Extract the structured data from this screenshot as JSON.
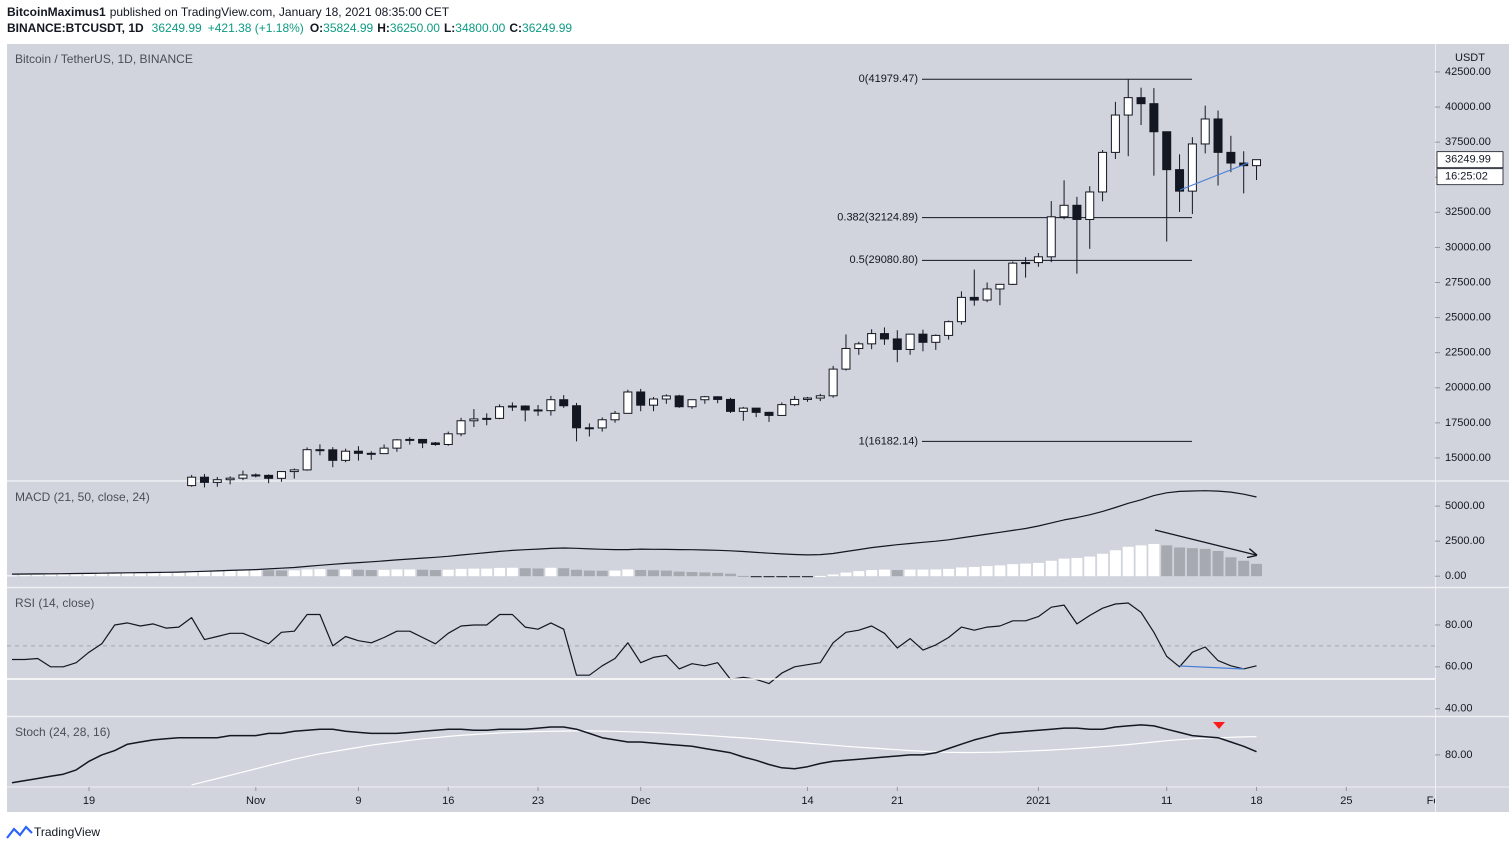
{
  "header": {
    "author": "BitcoinMaximus1",
    "published": "published on TradingView.com, January 18, 2021 08:35:00 CET",
    "symbol": "BINANCE:BTCUSDT, 1D",
    "last": "36249.99",
    "change": "+421.38 (+1.18%)",
    "quote": [
      {
        "label": "O:",
        "value": "35824.99"
      },
      {
        "label": "H:",
        "value": "36250.00"
      },
      {
        "label": "L:",
        "value": "34800.00"
      },
      {
        "label": "C:",
        "value": "36249.99"
      }
    ]
  },
  "footer": {
    "brand": "TradingView"
  },
  "chart_data": {
    "type": "candlestick",
    "title": "Bitcoin / TetherUS, 1D, BINANCE",
    "y_axis_unit": "USDT",
    "last_price": 36249.99,
    "countdown": "16:25:02",
    "up_color": "#ffffff",
    "down_color": "#131722",
    "grid": false,
    "x": [
      "2020-10-13",
      "2020-10-14",
      "2020-10-15",
      "2020-10-16",
      "2020-10-17",
      "2020-10-18",
      "2020-10-19",
      "2020-10-20",
      "2020-10-21",
      "2020-10-22",
      "2020-10-23",
      "2020-10-24",
      "2020-10-25",
      "2020-10-26",
      "2020-10-27",
      "2020-10-28",
      "2020-10-29",
      "2020-10-30",
      "2020-10-31",
      "2020-11-01",
      "2020-11-02",
      "2020-11-03",
      "2020-11-04",
      "2020-11-05",
      "2020-11-06",
      "2020-11-07",
      "2020-11-08",
      "2020-11-09",
      "2020-11-10",
      "2020-11-11",
      "2020-11-12",
      "2020-11-13",
      "2020-11-14",
      "2020-11-15",
      "2020-11-16",
      "2020-11-17",
      "2020-11-18",
      "2020-11-19",
      "2020-11-20",
      "2020-11-21",
      "2020-11-22",
      "2020-11-23",
      "2020-11-24",
      "2020-11-25",
      "2020-11-26",
      "2020-11-27",
      "2020-11-28",
      "2020-11-29",
      "2020-11-30",
      "2020-12-01",
      "2020-12-02",
      "2020-12-03",
      "2020-12-04",
      "2020-12-05",
      "2020-12-06",
      "2020-12-07",
      "2020-12-08",
      "2020-12-09",
      "2020-12-10",
      "2020-12-11",
      "2020-12-12",
      "2020-12-13",
      "2020-12-14",
      "2020-12-15",
      "2020-12-16",
      "2020-12-17",
      "2020-12-18",
      "2020-12-19",
      "2020-12-20",
      "2020-12-21",
      "2020-12-22",
      "2020-12-23",
      "2020-12-24",
      "2020-12-25",
      "2020-12-26",
      "2020-12-27",
      "2020-12-28",
      "2020-12-29",
      "2020-12-30",
      "2020-12-31",
      "2021-01-01",
      "2021-01-02",
      "2021-01-03",
      "2021-01-04",
      "2021-01-05",
      "2021-01-06",
      "2021-01-07",
      "2021-01-08",
      "2021-01-09",
      "2021-01-10",
      "2021-01-11",
      "2021-01-12",
      "2021-01-13",
      "2021-01-14",
      "2021-01-15",
      "2021-01-16",
      "2021-01-17",
      "2021-01-18"
    ],
    "open": [
      null,
      null,
      null,
      null,
      null,
      null,
      null,
      null,
      null,
      null,
      null,
      null,
      null,
      null,
      13031,
      13630,
      13260,
      13450,
      13560,
      13790,
      13760,
      13550,
      14030,
      14150,
      15590,
      15580,
      14830,
      15480,
      15330,
      15310,
      15700,
      16290,
      16320,
      16070,
      15960,
      16720,
      17650,
      17780,
      17820,
      18650,
      18700,
      18420,
      18370,
      19150,
      18720,
      17150,
      17140,
      17720,
      18180,
      19700,
      18760,
      19200,
      19420,
      18650,
      19150,
      19360,
      19170,
      18320,
      18550,
      18250,
      18030,
      18800,
      19170,
      19270,
      19430,
      21330,
      22800,
      23130,
      23860,
      23480,
      22730,
      23820,
      23240,
      23730,
      24710,
      26440,
      26250,
      27040,
      27370,
      28880,
      28920,
      29330,
      32180,
      33000,
      31990,
      33950,
      36770,
      39430,
      40670,
      40240,
      38240,
      35540,
      34010,
      37370,
      39150,
      36770,
      36010,
      35824.99
    ],
    "high": [
      null,
      null,
      null,
      null,
      null,
      null,
      null,
      null,
      null,
      null,
      null,
      null,
      null,
      null,
      13790,
      13860,
      13650,
      13690,
      14100,
      13900,
      13830,
      14070,
      14250,
      15750,
      15970,
      15770,
      15660,
      15840,
      15480,
      15960,
      16340,
      16480,
      16330,
      16140,
      16880,
      17860,
      18480,
      18180,
      18820,
      18960,
      18750,
      18770,
      19420,
      19480,
      18920,
      17460,
      17890,
      18350,
      19860,
      19920,
      19340,
      19530,
      19500,
      19180,
      19420,
      19390,
      19290,
      18640,
      18560,
      18290,
      18950,
      19410,
      19350,
      19570,
      21560,
      23800,
      23280,
      24170,
      24300,
      24100,
      23840,
      24140,
      23800,
      24790,
      26870,
      28420,
      27500,
      27390,
      28990,
      29300,
      29600,
      33300,
      34780,
      33600,
      34360,
      36940,
      40370,
      41979.47,
      41380,
      41350,
      38260,
      36630,
      37850,
      40100,
      39750,
      37950,
      36850,
      36250
    ],
    "low": [
      null,
      null,
      null,
      null,
      null,
      null,
      null,
      null,
      null,
      null,
      null,
      null,
      null,
      null,
      12950,
      12900,
      12950,
      13120,
      13420,
      13620,
      13200,
      13300,
      13530,
      14090,
      15190,
      14340,
      14700,
      14810,
      14870,
      15280,
      15440,
      15950,
      15700,
      15870,
      15870,
      16550,
      17210,
      17330,
      17760,
      18350,
      17610,
      18000,
      18020,
      18570,
      16182.14,
      16530,
      16880,
      17510,
      18170,
      18330,
      18330,
      18860,
      18570,
      18500,
      18860,
      18900,
      18200,
      17650,
      17910,
      17570,
      18020,
      18710,
      19000,
      19050,
      19290,
      21230,
      22350,
      22750,
      23060,
      21820,
      22350,
      22600,
      22700,
      23430,
      24500,
      25850,
      26100,
      25880,
      27320,
      27850,
      28620,
      28950,
      32000,
      28130,
      29900,
      33290,
      36300,
      36500,
      38720,
      35110,
      30420,
      32530,
      32380,
      36700,
      34410,
      35360,
      33850,
      34800
    ],
    "close": [
      null,
      null,
      null,
      null,
      null,
      null,
      null,
      null,
      null,
      null,
      null,
      null,
      null,
      null,
      13630,
      13260,
      13450,
      13560,
      13790,
      13760,
      13550,
      14030,
      14150,
      15590,
      15580,
      14830,
      15480,
      15330,
      15310,
      15700,
      16290,
      16320,
      16070,
      15960,
      16720,
      17650,
      17780,
      17820,
      18650,
      18700,
      18420,
      18370,
      19150,
      18720,
      17150,
      17140,
      17720,
      18180,
      19700,
      18760,
      19200,
      19420,
      18650,
      19150,
      19360,
      19170,
      18320,
      18550,
      18250,
      18030,
      18800,
      19170,
      19270,
      19430,
      21330,
      22800,
      23130,
      23860,
      23480,
      22730,
      23820,
      23240,
      23730,
      24710,
      26440,
      26250,
      27040,
      27370,
      28880,
      28920,
      29330,
      32180,
      33000,
      31990,
      33950,
      36770,
      39430,
      40670,
      40240,
      38240,
      35540,
      34010,
      37370,
      39150,
      36770,
      36010,
      35824.99,
      36249.99
    ],
    "ylim": [
      13430,
      44420
    ],
    "yticks": [
      {
        "value": 15000,
        "label": "15000.00"
      },
      {
        "value": 17500,
        "label": "17500.00"
      },
      {
        "value": 20000,
        "label": "20000.00"
      },
      {
        "value": 22500,
        "label": "22500.00"
      },
      {
        "value": 25000,
        "label": "25000.00"
      },
      {
        "value": 27500,
        "label": "27500.00"
      },
      {
        "value": 30000,
        "label": "30000.00"
      },
      {
        "value": 32500,
        "label": "32500.00"
      },
      {
        "value": 35000,
        "label": "35000.00"
      },
      {
        "value": 37500,
        "label": "37500.00"
      },
      {
        "value": 40000,
        "label": "40000.00"
      },
      {
        "value": 42500,
        "label": "42500.00"
      }
    ],
    "xticks": [
      {
        "value": "2020-10-19",
        "label": "19"
      },
      {
        "value": "2020-11-01",
        "label": "Nov"
      },
      {
        "value": "2020-11-09",
        "label": "9"
      },
      {
        "value": "2020-11-16",
        "label": "16"
      },
      {
        "value": "2020-11-23",
        "label": "23"
      },
      {
        "value": "2020-12-01",
        "label": "Dec"
      },
      {
        "value": "2020-12-14",
        "label": "14"
      },
      {
        "value": "2020-12-21",
        "label": "21"
      },
      {
        "value": "2021-01-01",
        "label": "2021"
      },
      {
        "value": "2021-01-11",
        "label": "11"
      },
      {
        "value": "2021-01-18",
        "label": "18"
      },
      {
        "value": "2021-01-25",
        "label": "25"
      },
      {
        "value": "2021-02-01",
        "label": "Feb"
      }
    ],
    "fib_levels": [
      {
        "price": 41979.47,
        "label": "0(41979.47)"
      },
      {
        "price": 32124.89,
        "label": "0.382(32124.89)"
      },
      {
        "price": 29080.8,
        "label": "0.5(29080.80)"
      },
      {
        "price": 16182.14,
        "label": "1(16182.14)"
      }
    ],
    "indicators": [
      {
        "type": "macd",
        "title": "MACD (21, 50, close, 24)",
        "ylim": [
          -700,
          6650
        ],
        "yticks": [
          {
            "value": 0,
            "label": "0.00"
          },
          {
            "value": 2500,
            "label": "2500.00"
          },
          {
            "value": 5000,
            "label": "5000.00"
          }
        ],
        "line_color": "#131722",
        "hist_colors": {
          "rising": "#ffffff",
          "falling": "#a7a9b1",
          "negative": "#131722"
        },
        "line": [
          150,
          155,
          160,
          170,
          180,
          190,
          200,
          210,
          225,
          240,
          255,
          265,
          275,
          290,
          320,
          350,
          380,
          410,
          440,
          470,
          520,
          570,
          620,
          700,
          780,
          850,
          910,
          970,
          1030,
          1090,
          1160,
          1230,
          1290,
          1350,
          1420,
          1510,
          1600,
          1680,
          1770,
          1840,
          1890,
          1930,
          1980,
          2010,
          1990,
          1950,
          1920,
          1900,
          1900,
          1930,
          1920,
          1910,
          1900,
          1890,
          1870,
          1850,
          1810,
          1760,
          1700,
          1640,
          1590,
          1550,
          1520,
          1540,
          1620,
          1760,
          1900,
          2040,
          2150,
          2250,
          2330,
          2420,
          2500,
          2600,
          2730,
          2870,
          3000,
          3130,
          3270,
          3400,
          3580,
          3800,
          4020,
          4180,
          4380,
          4620,
          4900,
          5200,
          5450,
          5750,
          5950,
          6050,
          6080,
          6100,
          6070,
          6000,
          5850,
          5650
        ],
        "histogram": [
          60,
          80,
          90,
          110,
          120,
          140,
          170,
          200,
          230,
          250,
          260,
          270,
          280,
          290,
          320,
          330,
          350,
          370,
          400,
          430,
          420,
          410,
          420,
          480,
          500,
          470,
          480,
          460,
          440,
          450,
          480,
          480,
          460,
          440,
          460,
          520,
          540,
          540,
          590,
          600,
          570,
          550,
          600,
          570,
          460,
          400,
          390,
          400,
          480,
          440,
          420,
          400,
          330,
          300,
          270,
          240,
          180,
          20,
          -30,
          -60,
          -70,
          -60,
          -40,
          20,
          120,
          260,
          360,
          440,
          470,
          440,
          470,
          470,
          480,
          520,
          620,
          660,
          720,
          770,
          860,
          900,
          950,
          1100,
          1250,
          1300,
          1400,
          1600,
          1850,
          2100,
          2200,
          2300,
          2200,
          2050,
          2000,
          1950,
          1800,
          1350,
          1100,
          880
        ]
      },
      {
        "type": "rsi",
        "title": "RSI (14, close)",
        "ylim": [
          37,
          96.7
        ],
        "band": 70,
        "yticks": [
          {
            "value": 40,
            "label": "40.00"
          },
          {
            "value": 60,
            "label": "60.00"
          },
          {
            "value": 80,
            "label": "80.00"
          }
        ],
        "line_color": "#131722",
        "line": [
          63.5,
          63.5,
          64,
          60,
          60,
          62,
          67,
          71,
          80,
          81,
          79.5,
          80.5,
          78.5,
          79,
          83.5,
          73,
          74.5,
          76,
          76,
          73.5,
          71,
          76.5,
          77,
          85,
          85,
          70,
          74.5,
          72.5,
          71.5,
          74,
          77,
          77,
          74,
          71,
          76,
          79.5,
          80,
          80,
          85,
          85,
          79,
          78,
          81,
          78,
          56,
          56,
          60.5,
          64,
          71.5,
          62,
          64.5,
          65.5,
          59,
          61.5,
          60.5,
          62,
          54,
          55,
          54,
          52,
          57,
          60,
          61,
          62,
          71.5,
          76.5,
          77.5,
          79.5,
          76,
          69,
          73.5,
          68,
          70.5,
          74,
          79,
          77.5,
          79,
          79.5,
          82,
          82,
          84,
          88.5,
          89.5,
          80.5,
          84.5,
          88,
          90,
          90.5,
          86,
          76.5,
          65,
          60,
          67,
          69.5,
          63,
          60.5,
          59,
          60.5
        ]
      },
      {
        "type": "stoch",
        "title": "Stoch (24, 28, 16)",
        "ylim": [
          65.5,
          97.2
        ],
        "yticks": [
          {
            "value": 80,
            "label": "80.00"
          }
        ],
        "k_color": "#131722",
        "d_color": "#ffffff",
        "k": [
          67,
          68,
          69,
          70,
          71,
          73,
          77,
          80,
          82,
          85,
          86,
          87,
          87.5,
          88,
          88,
          88,
          88,
          89,
          89,
          89,
          90,
          90,
          91,
          91.5,
          92,
          92,
          91,
          90.5,
          90,
          90,
          90,
          90.5,
          91,
          91.5,
          92,
          92,
          91.5,
          91.5,
          92,
          92,
          92,
          92.5,
          93,
          93,
          92,
          90,
          88,
          87,
          86,
          86,
          85.5,
          85,
          84.5,
          84,
          83,
          82,
          81,
          79,
          77.5,
          75.5,
          74,
          73.5,
          74.5,
          76,
          77,
          77.5,
          78,
          78.5,
          79,
          79.5,
          80,
          80,
          81,
          83,
          85,
          87,
          88.5,
          90,
          90.5,
          91,
          91.5,
          92,
          92.5,
          92.5,
          92,
          92,
          93,
          93.5,
          94,
          93.5,
          92,
          90.5,
          89,
          88.5,
          88,
          86,
          84,
          81.5
        ],
        "d": [
          null,
          null,
          null,
          null,
          null,
          null,
          null,
          null,
          null,
          null,
          null,
          null,
          null,
          null,
          66,
          67.5,
          69,
          70.5,
          72,
          73.5,
          75,
          76.5,
          78,
          79.3,
          80.5,
          81.5,
          82.5,
          83.5,
          84.5,
          85.3,
          86,
          86.8,
          87.5,
          88,
          88.6,
          89.1,
          89.5,
          89.9,
          90.2,
          90.5,
          90.7,
          90.9,
          91,
          91.1,
          91.2,
          91.2,
          91.1,
          91,
          90.8,
          90.6,
          90.4,
          90.1,
          89.8,
          89.5,
          89.1,
          88.7,
          88.3,
          87.9,
          87.5,
          87,
          86.5,
          86,
          85.5,
          85,
          84.5,
          84,
          83.6,
          83.2,
          82.8,
          82.4,
          82,
          81.7,
          81.4,
          81.2,
          81.1,
          81.1,
          81.2,
          81.3,
          81.5,
          81.7,
          82,
          82.3,
          82.6,
          83,
          83.4,
          83.8,
          84.3,
          84.8,
          85.4,
          86,
          86.6,
          87.1,
          87.5,
          87.8,
          88,
          88.2,
          88.4,
          88.5
        ]
      }
    ]
  }
}
